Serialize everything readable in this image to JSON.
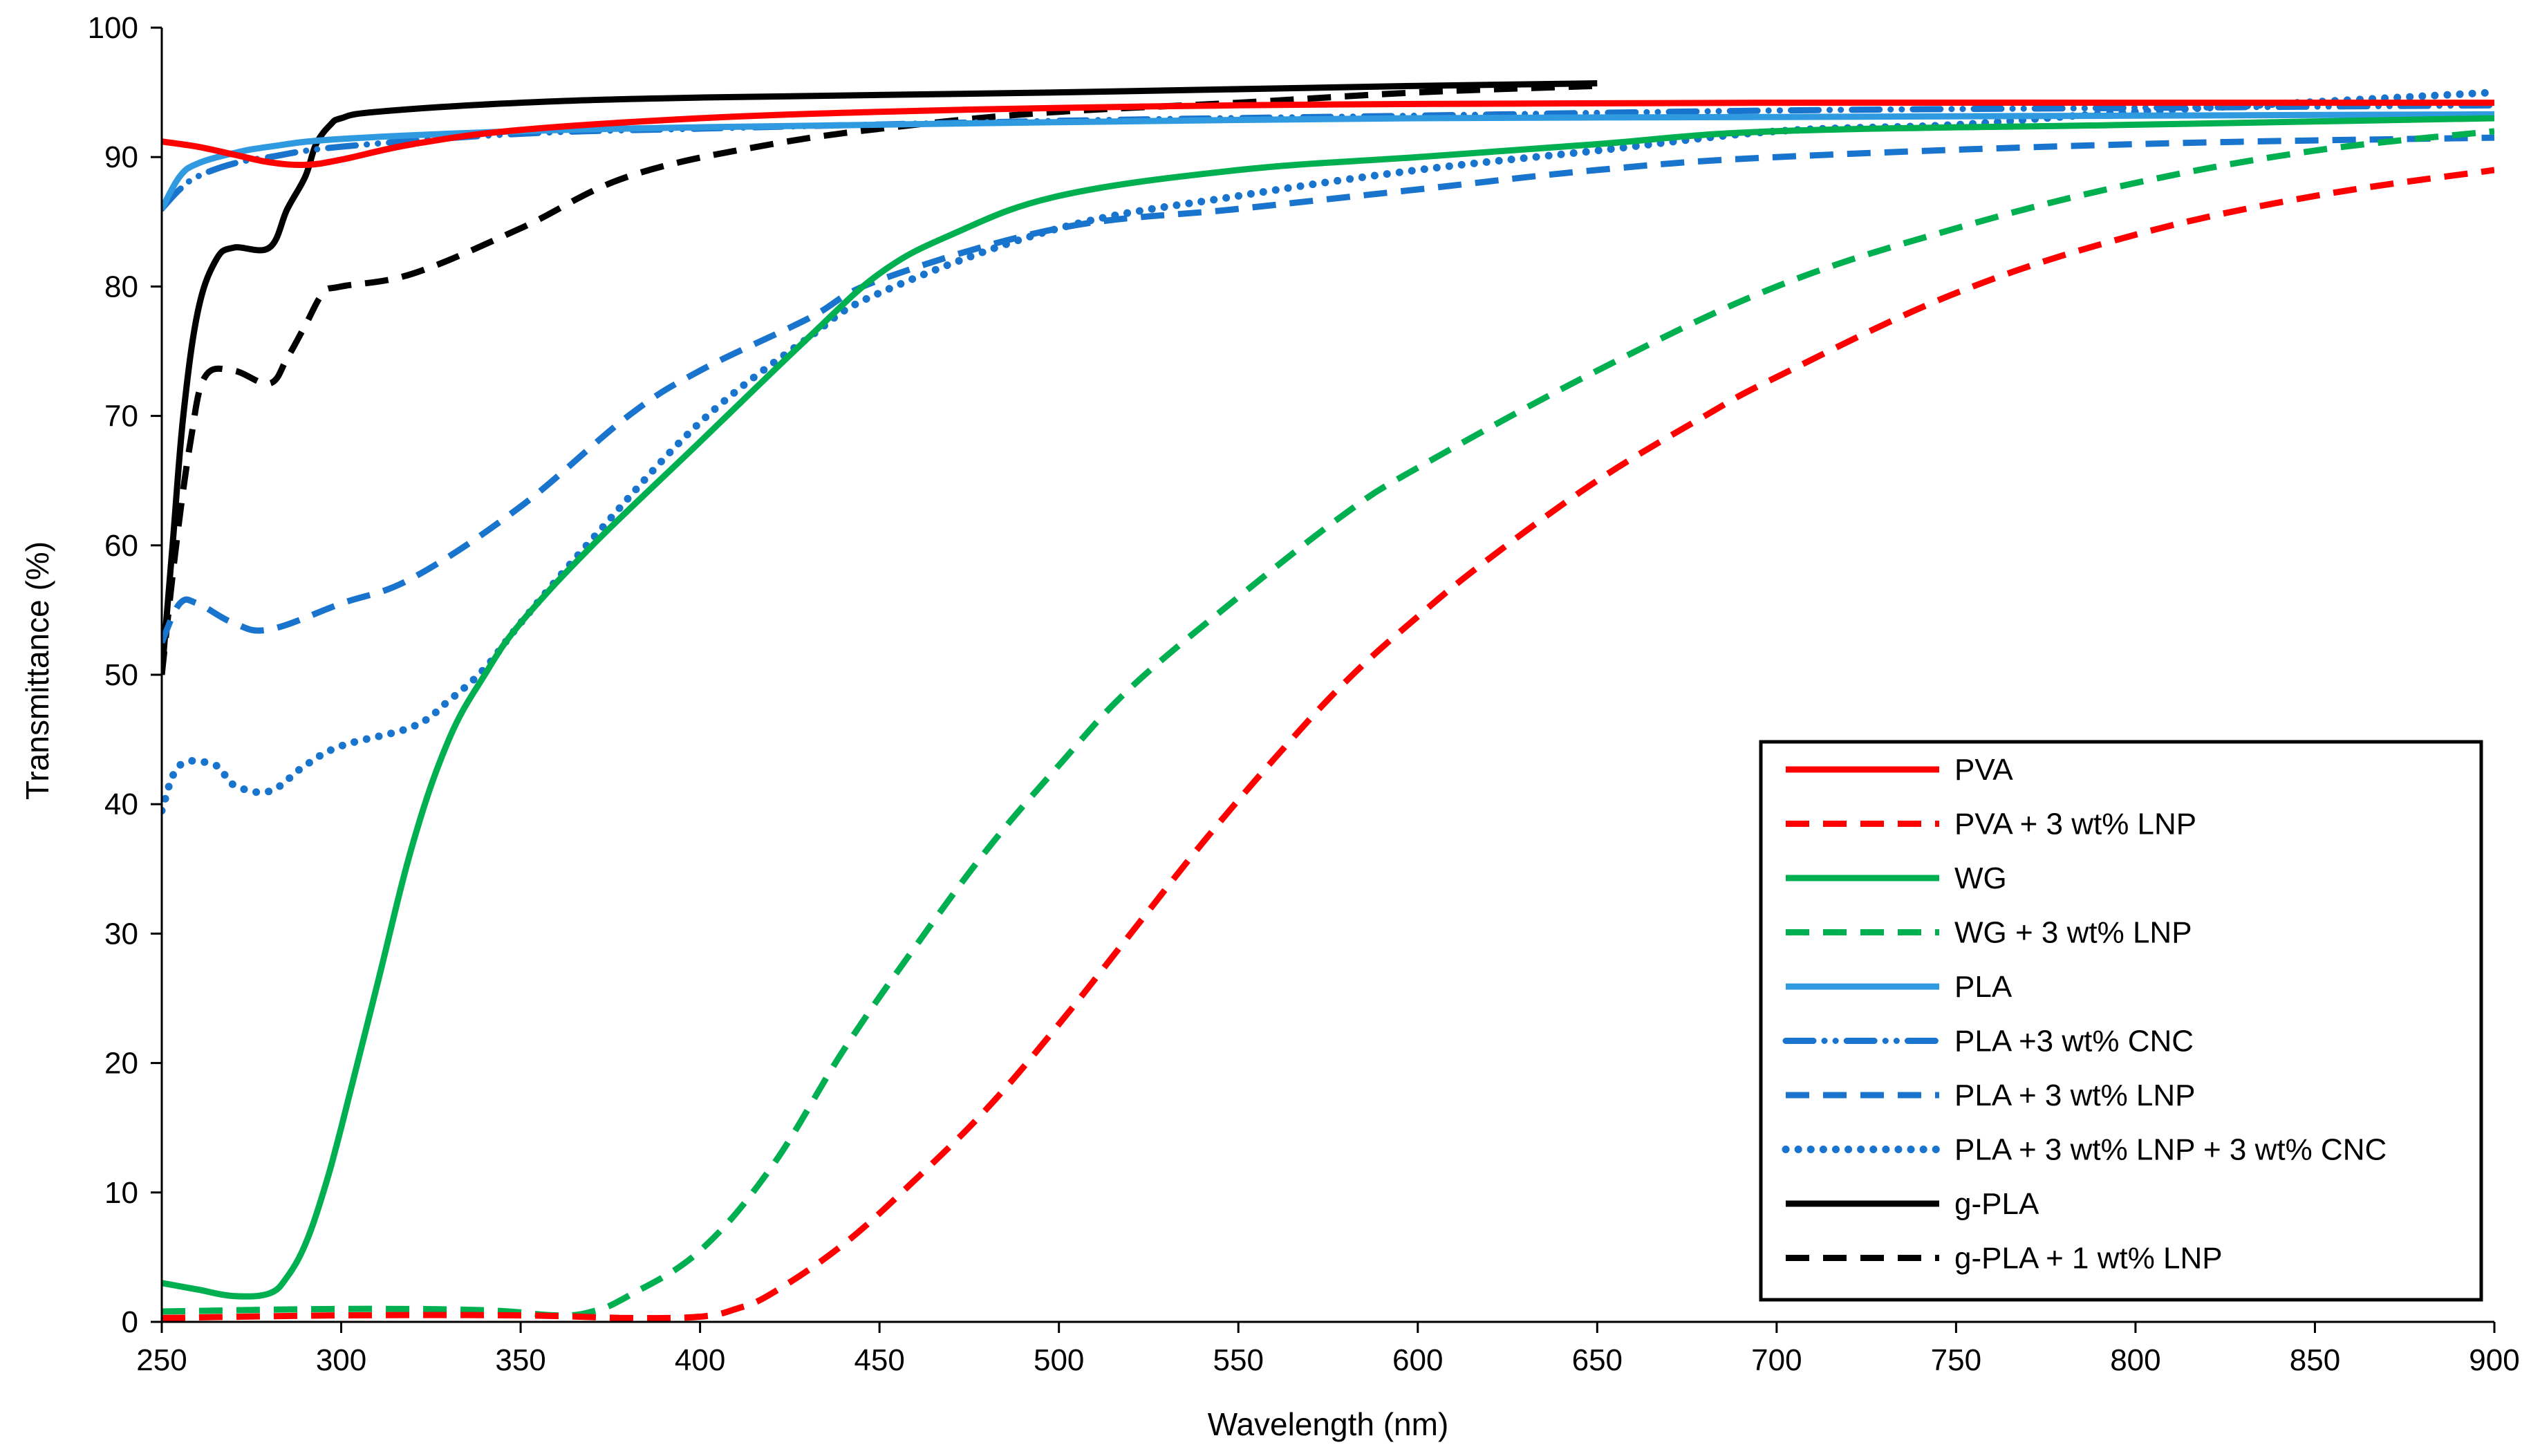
{
  "chart_data": {
    "type": "line",
    "title": "",
    "xlabel": "Wavelength (nm)",
    "ylabel": "Transmittance (%)",
    "xlim": [
      250,
      900
    ],
    "ylim": [
      0,
      100
    ],
    "xticks": [
      "250",
      "300",
      "350",
      "400",
      "450",
      "500",
      "550",
      "600",
      "650",
      "700",
      "750",
      "800",
      "850",
      "900"
    ],
    "yticks": [
      "0",
      "10",
      "20",
      "30",
      "40",
      "50",
      "60",
      "70",
      "80",
      "90",
      "100"
    ],
    "grid": false,
    "legend_position": "bottom-right",
    "series": [
      {
        "name": "PVA",
        "color": "#ff0000",
        "dash": "solid",
        "x": [
          250,
          260,
          270,
          280,
          290,
          300,
          320,
          350,
          400,
          450,
          500,
          550,
          600,
          700,
          800,
          900
        ],
        "y": [
          91.2,
          90.8,
          90.2,
          89.6,
          89.4,
          89.8,
          91.0,
          92.1,
          93.0,
          93.5,
          93.8,
          94.0,
          94.1,
          94.2,
          94.2,
          94.2
        ]
      },
      {
        "name": "PVA + 3 wt% LNP",
        "color": "#ff0000",
        "dash": "dashed",
        "x": [
          250,
          300,
          350,
          380,
          400,
          410,
          420,
          440,
          460,
          480,
          500,
          520,
          540,
          560,
          580,
          600,
          620,
          650,
          680,
          700,
          750,
          800,
          850,
          900
        ],
        "y": [
          0.3,
          0.5,
          0.5,
          0.3,
          0.4,
          1.0,
          2.2,
          6.0,
          11.0,
          16.5,
          23.0,
          30.0,
          37.0,
          43.5,
          49.5,
          54.5,
          59.0,
          65.0,
          70.0,
          73.0,
          79.5,
          84.0,
          87.0,
          89.0
        ]
      },
      {
        "name": "WG",
        "color": "#00b050",
        "dash": "solid",
        "x": [
          250,
          260,
          270,
          280,
          285,
          290,
          295,
          300,
          310,
          320,
          330,
          340,
          350,
          370,
          400,
          430,
          450,
          470,
          500,
          550,
          600,
          650,
          700,
          800,
          900
        ],
        "y": [
          3.0,
          2.5,
          2.0,
          2.2,
          3.5,
          6.0,
          10.0,
          15.0,
          26.0,
          37.0,
          45.0,
          50.0,
          54.0,
          60.0,
          68.0,
          76.0,
          81.0,
          84.0,
          87.0,
          89.0,
          90.0,
          91.0,
          92.0,
          92.5,
          93.0
        ]
      },
      {
        "name": "WG + 3 wt% LNP",
        "color": "#00b050",
        "dash": "dashed",
        "x": [
          250,
          300,
          340,
          360,
          370,
          380,
          400,
          420,
          440,
          460,
          480,
          500,
          520,
          550,
          580,
          600,
          650,
          700,
          750,
          800,
          850,
          900
        ],
        "y": [
          0.8,
          1.0,
          0.9,
          0.5,
          0.8,
          2.0,
          5.5,
          12.0,
          21.0,
          29.0,
          36.5,
          43.0,
          49.0,
          56.0,
          62.5,
          66.0,
          73.5,
          80.0,
          84.5,
          88.0,
          90.5,
          92.0
        ]
      },
      {
        "name": "PLA",
        "color": "#2f9ae0",
        "dash": "solid",
        "x": [
          250,
          255,
          260,
          270,
          280,
          300,
          350,
          400,
          500,
          600,
          700,
          800,
          900
        ],
        "y": [
          86.0,
          88.5,
          89.5,
          90.3,
          90.8,
          91.4,
          92.0,
          92.3,
          92.7,
          93.0,
          93.1,
          93.2,
          93.3
        ]
      },
      {
        "name": "PLA +3 wt% CNC",
        "color": "#1874cd",
        "dash": "dashdot",
        "x": [
          250,
          255,
          260,
          270,
          280,
          300,
          350,
          400,
          500,
          600,
          700,
          800,
          900
        ],
        "y": [
          86.0,
          87.5,
          88.5,
          89.5,
          90.0,
          90.8,
          91.8,
          92.2,
          92.8,
          93.2,
          93.6,
          93.8,
          94.0
        ]
      },
      {
        "name": "PLA + 3 wt% LNP",
        "color": "#1874cd",
        "dash": "dashed",
        "x": [
          250,
          255,
          260,
          270,
          280,
          300,
          320,
          350,
          380,
          400,
          430,
          450,
          500,
          550,
          600,
          650,
          700,
          800,
          900
        ],
        "y": [
          52.5,
          55.5,
          55.5,
          54.0,
          53.5,
          55.5,
          57.5,
          63.0,
          70.0,
          73.5,
          77.5,
          80.5,
          84.5,
          86.0,
          87.5,
          89.0,
          90.0,
          91.0,
          91.5
        ]
      },
      {
        "name": "PLA + 3 wt% LNP + 3 wt% CNC",
        "color": "#1874cd",
        "dash": "dotted",
        "x": [
          250,
          255,
          265,
          270,
          280,
          290,
          300,
          320,
          330,
          340,
          350,
          370,
          400,
          430,
          450,
          500,
          550,
          600,
          650,
          700,
          750,
          800,
          900
        ],
        "y": [
          39.5,
          43.0,
          43.0,
          41.5,
          41.0,
          43.0,
          44.5,
          46.0,
          48.0,
          50.5,
          54.0,
          60.5,
          69.5,
          76.0,
          79.5,
          84.5,
          87.0,
          89.0,
          90.5,
          92.0,
          92.5,
          93.5,
          95.0
        ]
      },
      {
        "name": "g-PLA",
        "color": "#000000",
        "dash": "solid",
        "x": [
          250,
          253,
          256,
          260,
          265,
          270,
          280,
          285,
          290,
          293,
          297,
          300,
          310,
          350,
          400,
          500,
          600,
          650
        ],
        "y": [
          50.0,
          60.0,
          70.0,
          78.0,
          82.0,
          83.0,
          83.0,
          86.0,
          88.5,
          91.0,
          92.5,
          93.0,
          93.5,
          94.2,
          94.6,
          95.0,
          95.5,
          95.7
        ]
      },
      {
        "name": "g-PLA + 1 wt% LNP",
        "color": "#000000",
        "dash": "dashed",
        "x": [
          250,
          254,
          258,
          262,
          270,
          280,
          285,
          290,
          295,
          300,
          320,
          350,
          380,
          420,
          460,
          500,
          550,
          600,
          650
        ],
        "y": [
          50.0,
          60.0,
          68.0,
          73.0,
          73.5,
          72.5,
          74.5,
          77.0,
          79.5,
          80.0,
          81.0,
          84.5,
          88.5,
          91.0,
          92.5,
          93.5,
          94.2,
          95.0,
          95.5
        ]
      }
    ]
  }
}
